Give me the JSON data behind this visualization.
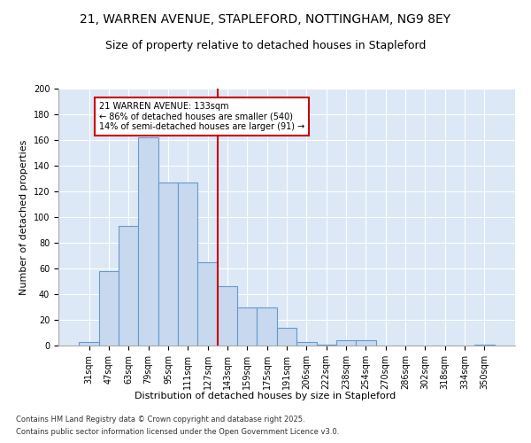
{
  "title_line1": "21, WARREN AVENUE, STAPLEFORD, NOTTINGHAM, NG9 8EY",
  "title_line2": "Size of property relative to detached houses in Stapleford",
  "xlabel": "Distribution of detached houses by size in Stapleford",
  "ylabel": "Number of detached properties",
  "categories": [
    "31sqm",
    "47sqm",
    "63sqm",
    "79sqm",
    "95sqm",
    "111sqm",
    "127sqm",
    "143sqm",
    "159sqm",
    "175sqm",
    "191sqm",
    "206sqm",
    "222sqm",
    "238sqm",
    "254sqm",
    "270sqm",
    "286sqm",
    "302sqm",
    "318sqm",
    "334sqm",
    "350sqm"
  ],
  "values": [
    3,
    58,
    93,
    162,
    127,
    127,
    65,
    46,
    30,
    30,
    14,
    3,
    1,
    4,
    4,
    0,
    0,
    0,
    0,
    0,
    1
  ],
  "bar_color": "#c8d8ee",
  "bar_edge_color": "#6699cc",
  "vline_color": "#cc0000",
  "annotation_text": "21 WARREN AVENUE: 133sqm\n← 86% of detached houses are smaller (540)\n14% of semi-detached houses are larger (91) →",
  "annotation_box_color": "#cc0000",
  "footer_line1": "Contains HM Land Registry data © Crown copyright and database right 2025.",
  "footer_line2": "Contains public sector information licensed under the Open Government Licence v3.0.",
  "bg_color": "#ffffff",
  "plot_bg_color": "#dce8f5",
  "grid_color": "#ffffff",
  "ylim": [
    0,
    200
  ],
  "yticks": [
    0,
    20,
    40,
    60,
    80,
    100,
    120,
    140,
    160,
    180,
    200
  ],
  "title_fontsize": 10,
  "subtitle_fontsize": 9,
  "axis_label_fontsize": 8,
  "tick_fontsize": 7,
  "footer_fontsize": 6,
  "annotation_fontsize": 7
}
